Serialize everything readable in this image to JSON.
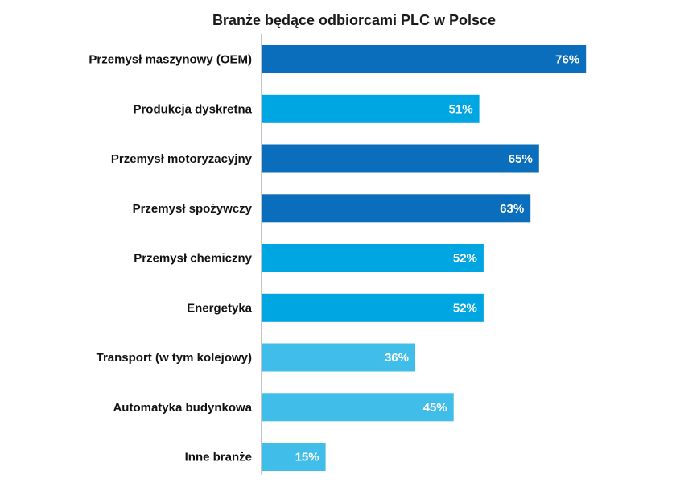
{
  "chart_data": {
    "type": "bar",
    "orientation": "horizontal",
    "title": "Branże będące odbiorcami PLC w Polsce",
    "xlabel": "",
    "ylabel": "",
    "xlim": [
      0,
      100
    ],
    "grid": false,
    "legend": "none",
    "categories": [
      "Przemysł maszynowy (OEM)",
      "Produkcja dyskretna",
      "Przemysł motoryzacyjny",
      "Przemysł spożywczy",
      "Przemysł chemiczny",
      "Energetyka",
      "Transport (w tym kolejowy)",
      "Automatyka budynkowa",
      "Inne branże"
    ],
    "values": [
      76,
      51,
      65,
      63,
      52,
      52,
      36,
      45,
      15
    ],
    "value_labels": [
      "76%",
      "51%",
      "65%",
      "63%",
      "52%",
      "52%",
      "36%",
      "45%",
      "15%"
    ],
    "bar_colors": [
      "#0a6ebd",
      "#00a6e2",
      "#0a6ebd",
      "#0a6ebd",
      "#00a6e2",
      "#00a6e2",
      "#40bde9",
      "#40bde9",
      "#40bde9"
    ]
  }
}
